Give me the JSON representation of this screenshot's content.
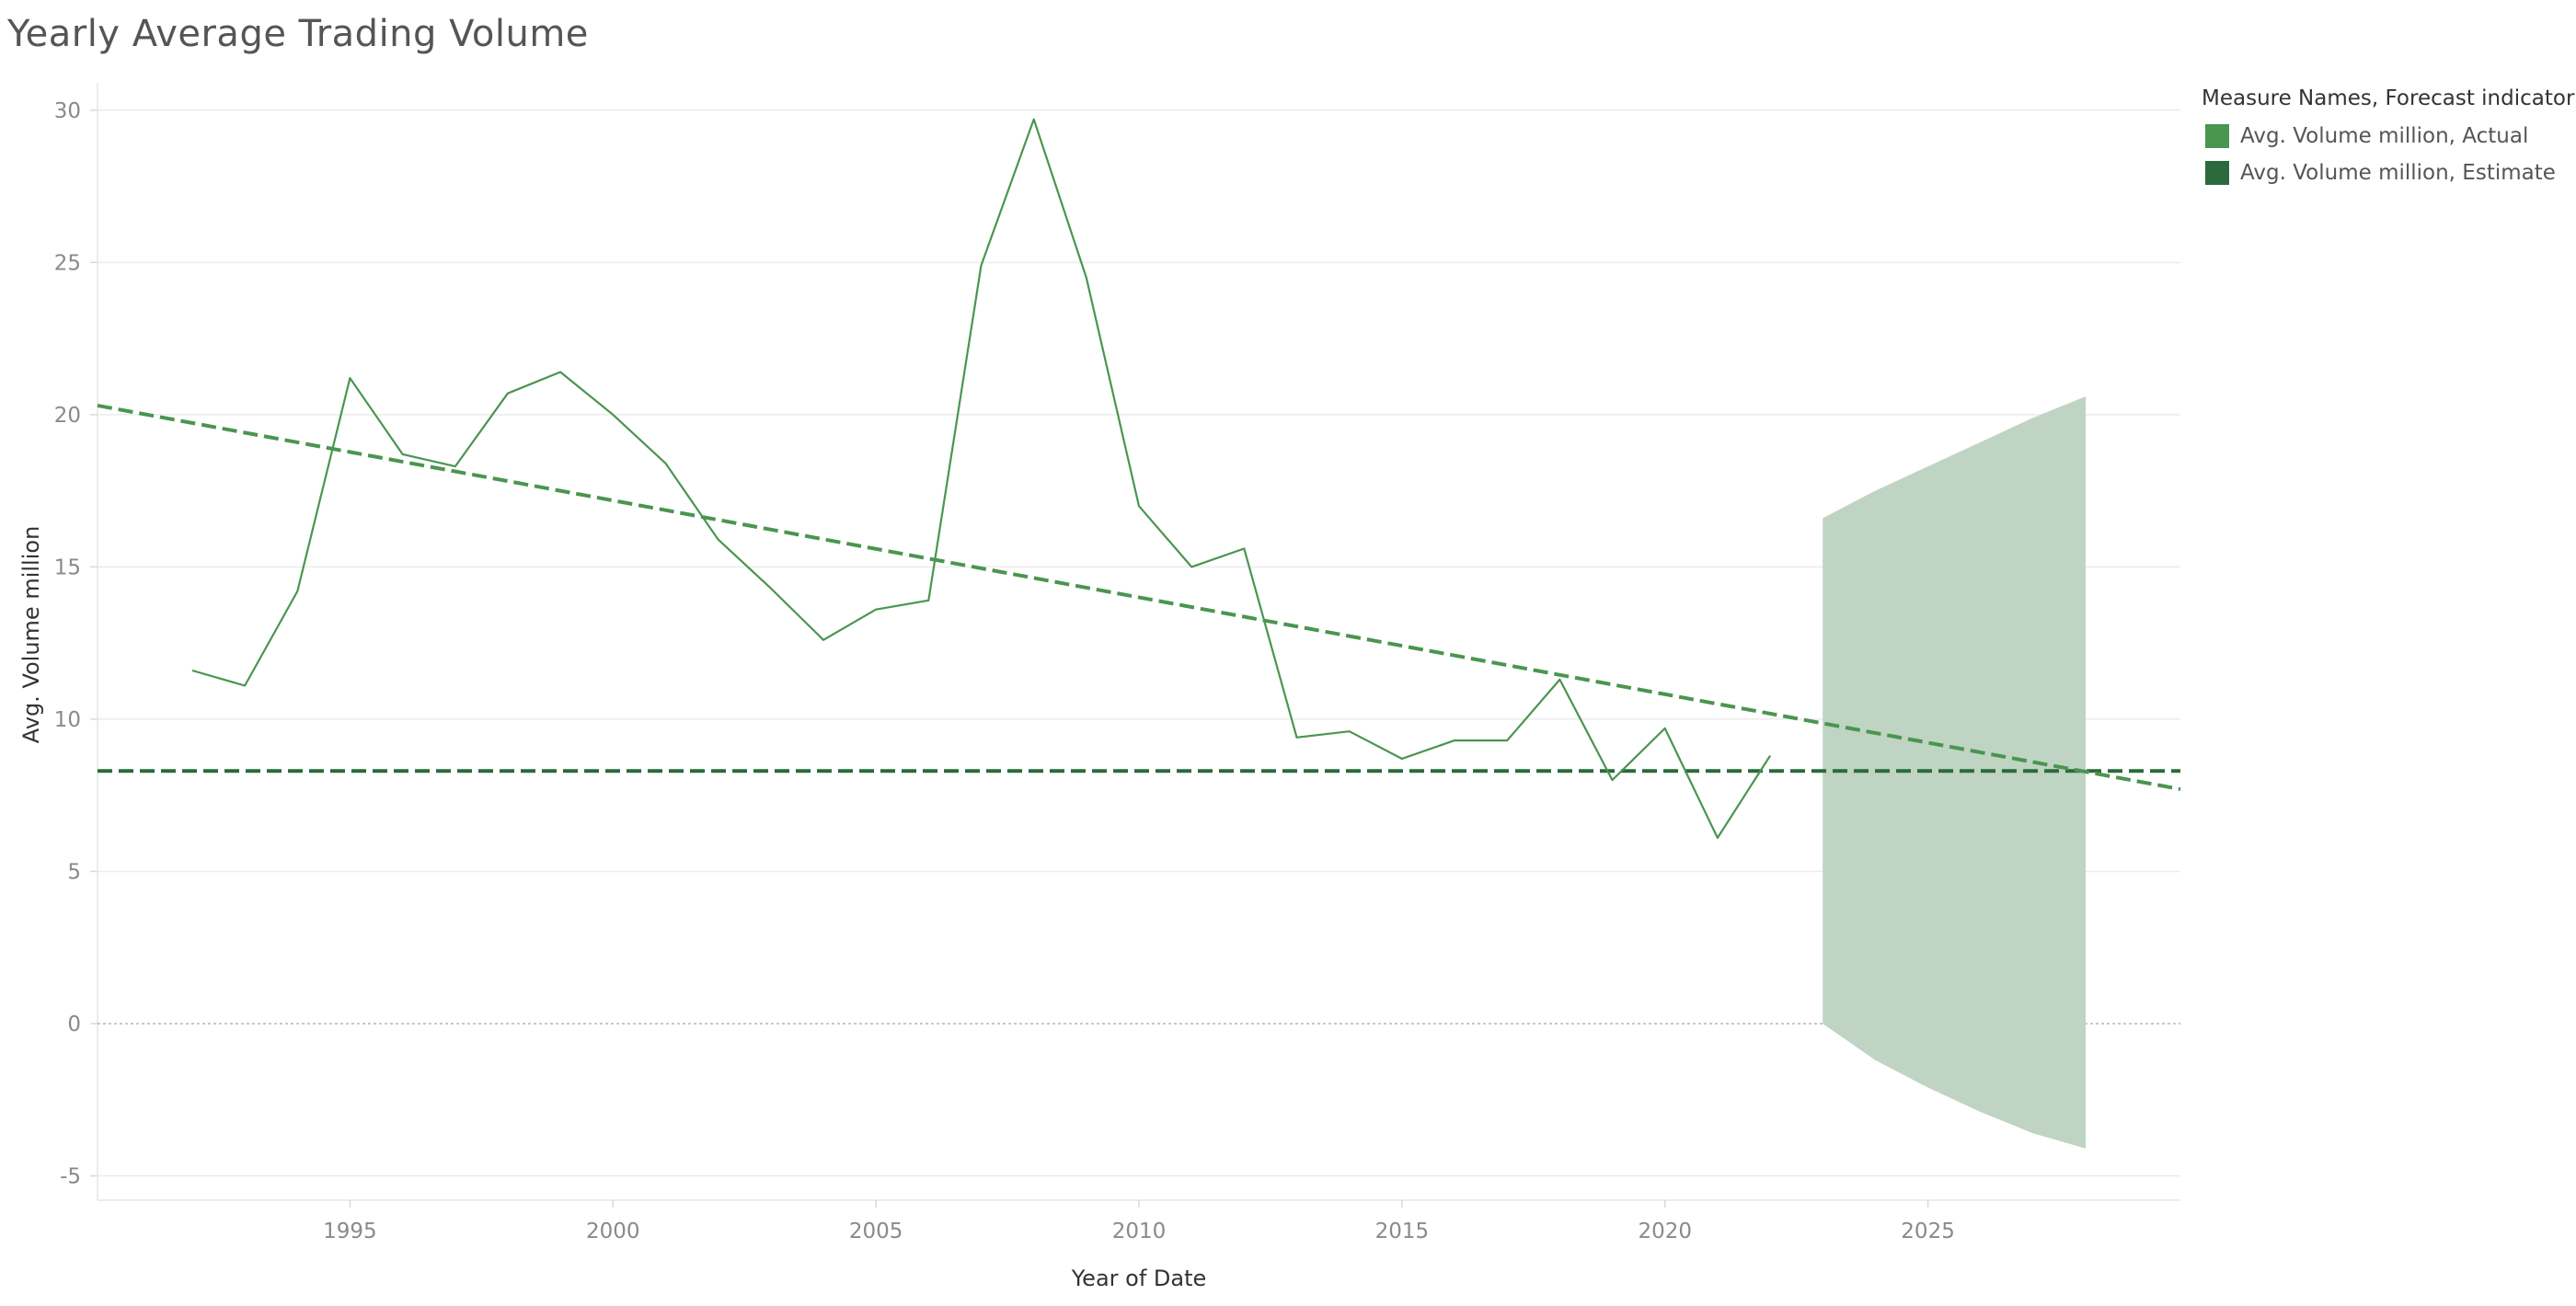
{
  "title": "Yearly Average Trading Volume",
  "legend": {
    "title": "Measure Names, Forecast indicator",
    "items": [
      {
        "label": "Avg. Volume million, Actual",
        "color": "#4a9550"
      },
      {
        "label": "Avg. Volume million, Estimate",
        "color": "#2a6a3c"
      }
    ]
  },
  "chart_data": {
    "type": "line",
    "title": "Yearly Average Trading Volume",
    "xlabel": "Year of Date",
    "ylabel": "Avg. Volume million",
    "xlim": [
      1990.2,
      2029.8
    ],
    "ylim": [
      -5.8,
      30.9
    ],
    "x_ticks": [
      1995,
      2000,
      2005,
      2010,
      2015,
      2020,
      2025
    ],
    "y_ticks": [
      -5,
      0,
      5,
      10,
      15,
      20,
      25,
      30
    ],
    "grid": true,
    "legend_position": "top-right",
    "series": [
      {
        "name": "Avg. Volume million, Actual",
        "color": "#4a9550",
        "x": [
          1992,
          1993,
          1994,
          1995,
          1996,
          1997,
          1998,
          1999,
          2000,
          2001,
          2002,
          2003,
          2004,
          2005,
          2006,
          2007,
          2008,
          2009,
          2010,
          2011,
          2012,
          2013,
          2014,
          2015,
          2016,
          2017,
          2018,
          2019,
          2020,
          2021,
          2022
        ],
        "y": [
          11.6,
          11.1,
          14.2,
          21.2,
          18.7,
          18.3,
          20.7,
          21.4,
          20.0,
          18.4,
          15.9,
          14.3,
          12.6,
          13.6,
          13.9,
          24.9,
          29.7,
          24.5,
          17.0,
          15.0,
          15.6,
          9.4,
          9.6,
          8.7,
          9.3,
          9.3,
          11.3,
          8.0,
          9.7,
          6.1,
          8.8
        ]
      }
    ],
    "trend_line": {
      "color": "#4a9550",
      "x": [
        1990.2,
        2029.8
      ],
      "y": [
        20.3,
        7.7
      ]
    },
    "average_line": {
      "color": "#2a6a3c",
      "value": 8.3
    },
    "forecast_band": {
      "color": "#bfd4c3",
      "x": [
        2023,
        2024,
        2025,
        2026,
        2027,
        2028
      ],
      "upper": [
        16.6,
        17.5,
        18.3,
        19.1,
        19.9,
        20.6
      ],
      "lower": [
        0.0,
        -1.2,
        -2.1,
        -2.9,
        -3.6,
        -4.1
      ]
    }
  }
}
